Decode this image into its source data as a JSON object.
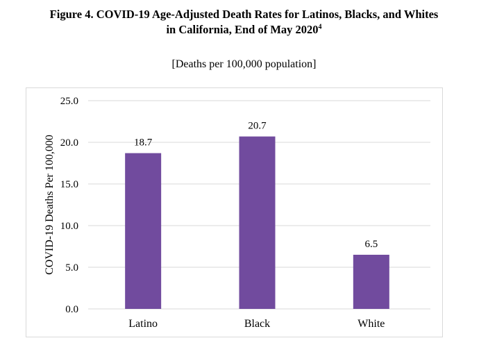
{
  "figure": {
    "title_line1": "Figure 4. COVID-19 Age-Adjusted Death Rates for Latinos, Blacks, and Whites",
    "title_line2": "in California, End of May 2020",
    "title_footnote": "4",
    "subtitle": "[Deaths per 100,000 population]"
  },
  "chart_data": {
    "type": "bar",
    "title": "",
    "xlabel": "",
    "ylabel": "COVID-19 Deaths Per 100,000",
    "categories": [
      "Latino",
      "Black",
      "White"
    ],
    "values": [
      18.7,
      20.7,
      6.5
    ],
    "value_labels": [
      "18.7",
      "20.7",
      "6.5"
    ],
    "ylim": [
      0,
      25
    ],
    "yticks": [
      0,
      5,
      10,
      15,
      20,
      25
    ],
    "ytick_labels": [
      "0.0",
      "5.0",
      "10.0",
      "15.0",
      "20.0",
      "25.0"
    ],
    "grid": true,
    "legend": "none",
    "colors": {
      "bar": "#714b9e",
      "grid": "#d9d9d9"
    }
  }
}
